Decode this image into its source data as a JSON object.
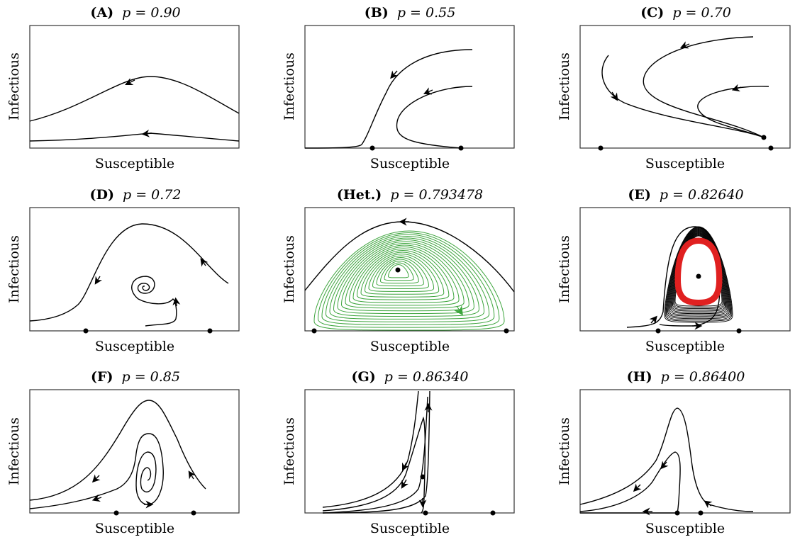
{
  "chart_data": [
    {
      "id": "A",
      "title_tag": "(A)",
      "title_param": "p = 0.90",
      "type": "phase-portrait",
      "xlabel": "Susceptible",
      "ylabel": "Infectious"
    },
    {
      "id": "B",
      "title_tag": "(B)",
      "title_param": "p = 0.55",
      "type": "phase-portrait",
      "xlabel": "Susceptible",
      "ylabel": "Infectious"
    },
    {
      "id": "C",
      "title_tag": "(C)",
      "title_param": "p = 0.70",
      "type": "phase-portrait",
      "xlabel": "Susceptible",
      "ylabel": "Infectious"
    },
    {
      "id": "D",
      "title_tag": "(D)",
      "title_param": "p = 0.72",
      "type": "phase-portrait",
      "xlabel": "Susceptible",
      "ylabel": "Infectious"
    },
    {
      "id": "Het",
      "title_tag": "(Het.)",
      "title_param": "p = 0.793478",
      "type": "phase-portrait",
      "xlabel": "Susceptible",
      "ylabel": "Infectious",
      "colors": {
        "orbit": "#3da53d"
      }
    },
    {
      "id": "E",
      "title_tag": "(E)",
      "title_param": "p = 0.82640",
      "type": "phase-portrait",
      "xlabel": "Susceptible",
      "ylabel": "Infectious",
      "colors": {
        "limit_cycle": "#e02020"
      }
    },
    {
      "id": "F",
      "title_tag": "(F)",
      "title_param": "p = 0.85",
      "type": "phase-portrait",
      "xlabel": "Susceptible",
      "ylabel": "Infectious"
    },
    {
      "id": "G",
      "title_tag": "(G)",
      "title_param": "p = 0.86340",
      "type": "phase-portrait",
      "xlabel": "Susceptible",
      "ylabel": "Infectious"
    },
    {
      "id": "H",
      "title_tag": "(H)",
      "title_param": "p = 0.86400",
      "type": "phase-portrait",
      "xlabel": "Susceptible",
      "ylabel": "Infectious"
    }
  ]
}
